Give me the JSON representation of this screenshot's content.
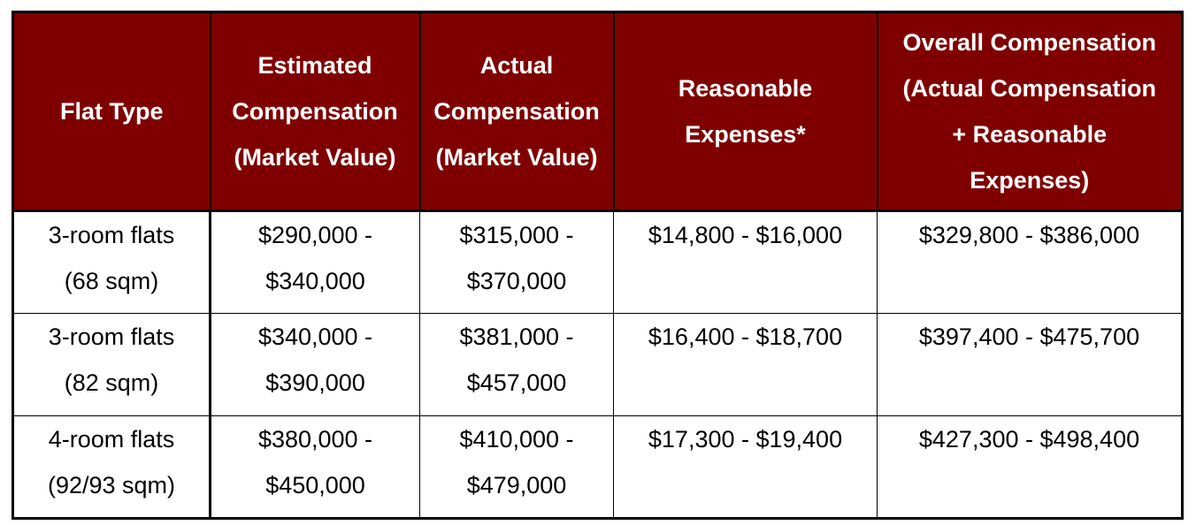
{
  "table": {
    "headers": [
      [
        "Flat Type"
      ],
      [
        "Estimated",
        "Compensation",
        "(Market Value)"
      ],
      [
        "Actual",
        "Compensation",
        "(Market Value)"
      ],
      [
        "Reasonable",
        "Expenses*"
      ],
      [
        "Overall Compensation",
        "(Actual Compensation",
        "+ Reasonable",
        "Expenses)"
      ]
    ],
    "rows": [
      {
        "flat_type": [
          "3-room flats",
          "(68 sqm)"
        ],
        "estimated": [
          "$290,000 -",
          "$340,000"
        ],
        "actual": [
          "$315,000 -",
          "$370,000"
        ],
        "expenses": "$14,800 - $16,000",
        "overall": "$329,800 - $386,000"
      },
      {
        "flat_type": [
          "3-room flats",
          "(82 sqm)"
        ],
        "estimated": [
          "$340,000 -",
          "$390,000"
        ],
        "actual": [
          "$381,000 -",
          "$457,000"
        ],
        "expenses": "$16,400 - $18,700",
        "overall": "$397,400 - $475,700"
      },
      {
        "flat_type": [
          "4-room flats",
          "(92/93 sqm)"
        ],
        "estimated": [
          "$380,000 -",
          "$450,000"
        ],
        "actual": [
          "$410,000 -",
          "$479,000"
        ],
        "expenses": "$17,300 - $19,400",
        "overall": "$427,300 - $498,400"
      }
    ]
  },
  "colors": {
    "header_background": "#7f0000",
    "header_text": "#ffffff",
    "body_background": "#ffffff",
    "border": "#000000"
  }
}
